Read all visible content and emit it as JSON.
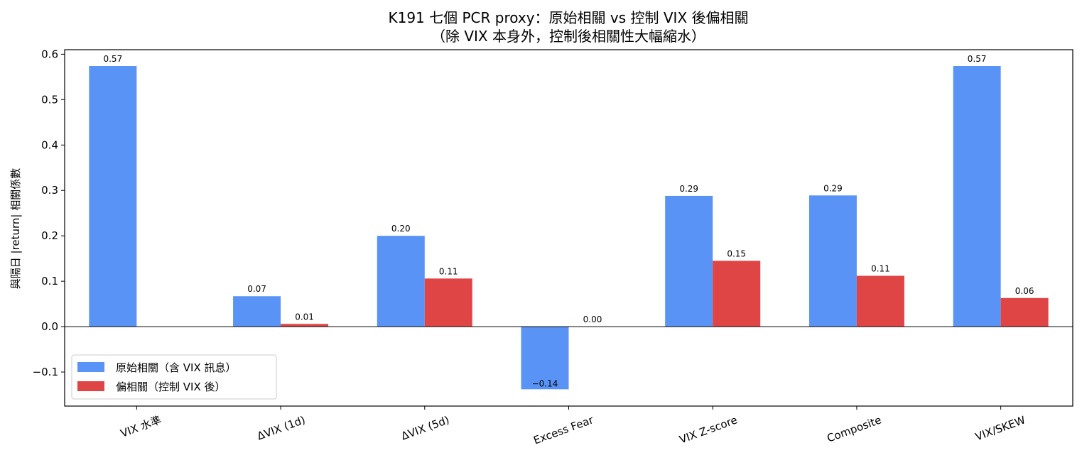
{
  "chart_data": {
    "type": "bar",
    "title": "K191 七個 PCR proxy：原始相關 vs 控制 VIX 後偏相關",
    "subtitle": "（除 VIX 本身外，控制後相關性大幅縮水）",
    "xlabel": "",
    "ylabel": "與隔日 |return| 相關係數",
    "ylim": [
      -0.175,
      0.61
    ],
    "yticks": [
      -0.1,
      0.0,
      0.1,
      0.2,
      0.3,
      0.4,
      0.5,
      0.6
    ],
    "ytick_labels": [
      "−0.1",
      "0.0",
      "0.1",
      "0.2",
      "0.3",
      "0.4",
      "0.5",
      "0.6"
    ],
    "grid": false,
    "legend_position": "lower-left",
    "categories": [
      "VIX 水準",
      "ΔVIX (1d)",
      "ΔVIX (5d)",
      "Excess Fear",
      "VIX Z-score",
      "Composite",
      "VIX/SKEW"
    ],
    "series": [
      {
        "name": "原始相關（含 VIX 訊息）",
        "color": "#5893f5",
        "values": [
          0.574,
          0.067,
          0.2,
          -0.138,
          0.288,
          0.289,
          0.574
        ],
        "labels": [
          "0.57",
          "0.07",
          "0.20",
          "−0.14",
          "0.29",
          "0.29",
          "0.57"
        ]
      },
      {
        "name": "偏相關（控制 VIX 後）",
        "color": "#e04545",
        "values": [
          null,
          0.006,
          0.106,
          0.0,
          0.145,
          0.112,
          0.063
        ],
        "labels": [
          null,
          "0.01",
          "0.11",
          "0.00",
          "0.15",
          "0.11",
          "0.06"
        ]
      }
    ]
  }
}
